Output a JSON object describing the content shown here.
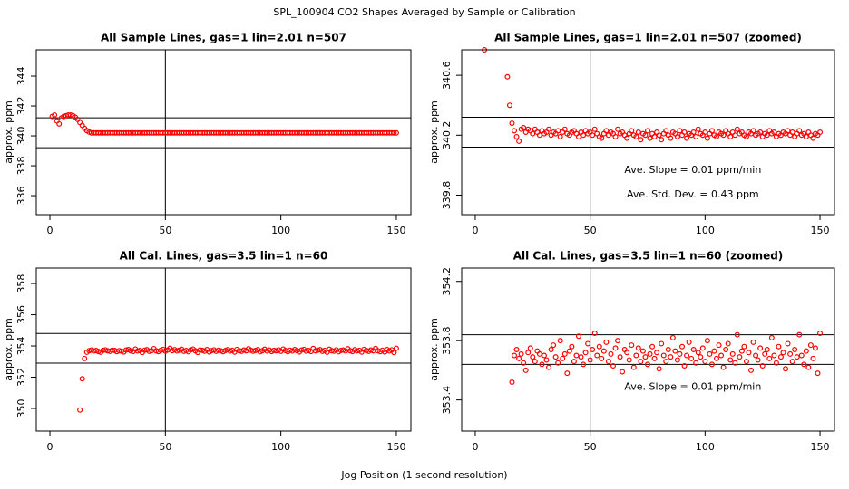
{
  "title": "SPL_100904  CO2 Shapes Averaged by Sample or Calibration",
  "xlabel": "Jog Position (1 second resolution)",
  "chart_data": [
    {
      "type": "scatter",
      "title": "All Sample Lines, gas=1 lin=2.01 n=507",
      "ylabel": "approx. ppm",
      "color": "#ff0000",
      "x": [
        1,
        2,
        3,
        4,
        5,
        6,
        7,
        8,
        9,
        10,
        11,
        12,
        13,
        14,
        15,
        16,
        17,
        18,
        19,
        20,
        21,
        22,
        23,
        24,
        25,
        26,
        27,
        28,
        29,
        30,
        31,
        32,
        33,
        34,
        35,
        36,
        37,
        38,
        39,
        40,
        41,
        42,
        43,
        44,
        45,
        46,
        47,
        48,
        49,
        50,
        51,
        52,
        53,
        54,
        55,
        56,
        57,
        58,
        59,
        60,
        61,
        62,
        63,
        64,
        65,
        66,
        67,
        68,
        69,
        70,
        71,
        72,
        73,
        74,
        75,
        76,
        77,
        78,
        79,
        80,
        81,
        82,
        83,
        84,
        85,
        86,
        87,
        88,
        89,
        90,
        91,
        92,
        93,
        94,
        95,
        96,
        97,
        98,
        99,
        100,
        101,
        102,
        103,
        104,
        105,
        106,
        107,
        108,
        109,
        110,
        111,
        112,
        113,
        114,
        115,
        116,
        117,
        118,
        119,
        120,
        121,
        122,
        123,
        124,
        125,
        126,
        127,
        128,
        129,
        130,
        131,
        132,
        133,
        134,
        135,
        136,
        137,
        138,
        139,
        140,
        141,
        142,
        143,
        144,
        145,
        146,
        147,
        148,
        149,
        150
      ],
      "values": [
        341.3,
        341.4,
        341.0,
        340.8,
        341.2,
        341.3,
        341.35,
        341.4,
        341.4,
        341.35,
        341.25,
        341.1,
        340.9,
        340.7,
        340.5,
        340.35,
        340.25,
        340.2,
        340.2,
        340.2,
        340.2,
        340.2,
        340.2,
        340.2,
        340.2,
        340.2,
        340.2,
        340.2,
        340.2,
        340.2,
        340.2,
        340.2,
        340.2,
        340.2,
        340.2,
        340.2,
        340.2,
        340.2,
        340.2,
        340.2,
        340.2,
        340.2,
        340.2,
        340.2,
        340.2,
        340.2,
        340.2,
        340.2,
        340.2,
        340.2,
        340.2,
        340.2,
        340.2,
        340.2,
        340.2,
        340.2,
        340.2,
        340.2,
        340.2,
        340.2,
        340.2,
        340.2,
        340.2,
        340.2,
        340.2,
        340.2,
        340.2,
        340.2,
        340.2,
        340.2,
        340.2,
        340.2,
        340.2,
        340.2,
        340.2,
        340.2,
        340.2,
        340.2,
        340.2,
        340.2,
        340.2,
        340.2,
        340.2,
        340.2,
        340.2,
        340.2,
        340.2,
        340.2,
        340.2,
        340.2,
        340.2,
        340.2,
        340.2,
        340.2,
        340.2,
        340.2,
        340.2,
        340.2,
        340.2,
        340.2,
        340.2,
        340.2,
        340.2,
        340.2,
        340.2,
        340.2,
        340.2,
        340.2,
        340.2,
        340.2,
        340.2,
        340.2,
        340.2,
        340.2,
        340.2,
        340.2,
        340.2,
        340.2,
        340.2,
        340.2,
        340.2,
        340.2,
        340.2,
        340.2,
        340.2,
        340.2,
        340.2,
        340.2,
        340.2,
        340.2,
        340.2,
        340.2,
        340.2,
        340.2,
        340.2,
        340.2,
        340.2,
        340.2,
        340.2,
        340.2,
        340.2,
        340.2,
        340.2,
        340.2,
        340.2,
        340.2,
        340.2,
        340.2,
        340.2,
        340.2
      ],
      "xlim": [
        -5.9,
        156.3
      ],
      "ylim": [
        334.73,
        345.76
      ],
      "xticks": [
        0,
        50,
        100,
        150
      ],
      "yticks": [
        336,
        338,
        340,
        342,
        344
      ],
      "hlines": [
        341.21,
        339.21
      ],
      "vlines": [
        50
      ],
      "annotations": []
    },
    {
      "type": "scatter",
      "title": "All Sample Lines, gas=1 lin=2.01 n=507 (zoomed)",
      "ylabel": "approx. ppm",
      "color": "#ff0000",
      "x": [
        4,
        14,
        15,
        16,
        17,
        18,
        19,
        20,
        21,
        22,
        23,
        24,
        25,
        26,
        27,
        28,
        29,
        30,
        31,
        32,
        33,
        34,
        35,
        36,
        37,
        38,
        39,
        40,
        41,
        42,
        43,
        44,
        45,
        46,
        47,
        48,
        49,
        50,
        51,
        52,
        53,
        54,
        55,
        56,
        57,
        58,
        59,
        60,
        61,
        62,
        63,
        64,
        65,
        66,
        67,
        68,
        69,
        70,
        71,
        72,
        73,
        74,
        75,
        76,
        77,
        78,
        79,
        80,
        81,
        82,
        83,
        84,
        85,
        86,
        87,
        88,
        89,
        90,
        91,
        92,
        93,
        94,
        95,
        96,
        97,
        98,
        99,
        100,
        101,
        102,
        103,
        104,
        105,
        106,
        107,
        108,
        109,
        110,
        111,
        112,
        113,
        114,
        115,
        116,
        117,
        118,
        119,
        120,
        121,
        122,
        123,
        124,
        125,
        126,
        127,
        128,
        129,
        130,
        131,
        132,
        133,
        134,
        135,
        136,
        137,
        138,
        139,
        140,
        141,
        142,
        143,
        144,
        145,
        146,
        147,
        148,
        149,
        150
      ],
      "values": [
        340.77,
        340.59,
        340.4,
        340.28,
        340.23,
        340.19,
        340.16,
        340.24,
        340.25,
        340.22,
        340.24,
        340.23,
        340.21,
        340.24,
        340.22,
        340.2,
        340.23,
        340.21,
        340.22,
        340.24,
        340.2,
        340.22,
        340.21,
        340.23,
        340.19,
        340.22,
        340.24,
        340.21,
        340.2,
        340.22,
        340.23,
        340.21,
        340.19,
        340.22,
        340.2,
        340.23,
        340.21,
        340.22,
        340.2,
        340.24,
        340.21,
        340.19,
        340.18,
        340.21,
        340.23,
        340.2,
        340.22,
        340.21,
        340.19,
        340.24,
        340.21,
        340.22,
        340.2,
        340.18,
        340.21,
        340.23,
        340.2,
        340.19,
        340.22,
        340.17,
        340.21,
        340.2,
        340.23,
        340.18,
        340.21,
        340.19,
        340.22,
        340.2,
        340.17,
        340.21,
        340.23,
        340.2,
        340.18,
        340.22,
        340.21,
        340.19,
        340.23,
        340.2,
        340.22,
        340.18,
        340.21,
        340.2,
        340.22,
        340.19,
        340.24,
        340.21,
        340.2,
        340.22,
        340.18,
        340.21,
        340.23,
        340.2,
        340.19,
        340.22,
        340.21,
        340.2,
        340.23,
        340.21,
        340.19,
        340.22,
        340.2,
        340.24,
        340.21,
        340.22,
        340.2,
        340.19,
        340.22,
        340.21,
        340.23,
        340.2,
        340.21,
        340.22,
        340.19,
        340.21,
        340.2,
        340.23,
        340.21,
        340.22,
        340.19,
        340.21,
        340.2,
        340.22,
        340.21,
        340.23,
        340.2,
        340.22,
        340.19,
        340.21,
        340.23,
        340.2,
        340.21,
        340.19,
        340.22,
        340.2,
        340.18,
        340.21,
        340.2,
        340.22
      ],
      "xlim": [
        -5.9,
        156.3
      ],
      "ylim": [
        339.67,
        340.77
      ],
      "xticks": [
        0,
        50,
        100,
        150
      ],
      "yticks": [
        339.8,
        340.2,
        340.6
      ],
      "hlines": [
        340.32,
        340.12
      ],
      "vlines": [
        50
      ],
      "annotations": [
        "Ave. Slope =  0.01  ppm/min",
        "Ave. Std. Dev. =  0.43  ppm"
      ]
    },
    {
      "type": "scatter",
      "title": "All Cal. Lines, gas=3.5 lin=1 n=60",
      "ylabel": "approx. ppm",
      "color": "#ff0000",
      "x": [
        13,
        14,
        15,
        16,
        17,
        18,
        19,
        20,
        21,
        22,
        23,
        24,
        25,
        26,
        27,
        28,
        29,
        30,
        31,
        32,
        33,
        34,
        35,
        36,
        37,
        38,
        39,
        40,
        41,
        42,
        43,
        44,
        45,
        46,
        47,
        48,
        49,
        50,
        51,
        52,
        53,
        54,
        55,
        56,
        57,
        58,
        59,
        60,
        61,
        62,
        63,
        64,
        65,
        66,
        67,
        68,
        69,
        70,
        71,
        72,
        73,
        74,
        75,
        76,
        77,
        78,
        79,
        80,
        81,
        82,
        83,
        84,
        85,
        86,
        87,
        88,
        89,
        90,
        91,
        92,
        93,
        94,
        95,
        96,
        97,
        98,
        99,
        100,
        101,
        102,
        103,
        104,
        105,
        106,
        107,
        108,
        109,
        110,
        111,
        112,
        113,
        114,
        115,
        116,
        117,
        118,
        119,
        120,
        121,
        122,
        123,
        124,
        125,
        126,
        127,
        128,
        129,
        130,
        131,
        132,
        133,
        134,
        135,
        136,
        137,
        138,
        139,
        140,
        141,
        142,
        143,
        144,
        145,
        146,
        147,
        148,
        149,
        150
      ],
      "values": [
        349.9,
        351.9,
        353.2,
        353.6,
        353.7,
        353.74,
        353.68,
        353.71,
        353.65,
        353.6,
        353.72,
        353.75,
        353.69,
        353.66,
        353.73,
        353.71,
        353.64,
        353.7,
        353.67,
        353.62,
        353.74,
        353.77,
        353.69,
        353.65,
        353.8,
        353.68,
        353.71,
        353.58,
        353.73,
        353.76,
        353.66,
        353.7,
        353.83,
        353.69,
        353.64,
        353.72,
        353.78,
        353.67,
        353.74,
        353.85,
        353.7,
        353.76,
        353.68,
        353.73,
        353.79,
        353.66,
        353.71,
        353.63,
        353.75,
        353.8,
        353.69,
        353.59,
        353.74,
        353.72,
        353.67,
        353.77,
        353.62,
        353.7,
        353.75,
        353.66,
        353.73,
        353.69,
        353.64,
        353.71,
        353.76,
        353.68,
        353.72,
        353.61,
        353.78,
        353.7,
        353.66,
        353.74,
        353.69,
        353.82,
        353.73,
        353.67,
        353.71,
        353.76,
        353.63,
        353.7,
        353.79,
        353.68,
        353.74,
        353.65,
        353.72,
        353.69,
        353.75,
        353.66,
        353.8,
        353.71,
        353.64,
        353.73,
        353.68,
        353.77,
        353.7,
        353.62,
        353.74,
        353.78,
        353.67,
        353.71,
        353.65,
        353.84,
        353.69,
        353.73,
        353.76,
        353.66,
        353.72,
        353.6,
        353.79,
        353.7,
        353.67,
        353.75,
        353.63,
        353.71,
        353.74,
        353.68,
        353.82,
        353.7,
        353.65,
        353.76,
        353.69,
        353.72,
        353.61,
        353.78,
        353.71,
        353.66,
        353.74,
        353.69,
        353.84,
        353.7,
        353.64,
        353.73,
        353.62,
        353.77,
        353.68,
        353.75,
        353.58,
        353.85
      ],
      "xlim": [
        -5.9,
        156.3
      ],
      "ylim": [
        348.55,
        358.99
      ],
      "xticks": [
        0,
        50,
        100,
        150
      ],
      "yticks": [
        350,
        352,
        354,
        356,
        358
      ],
      "hlines": [
        354.8,
        352.9
      ],
      "vlines": [
        50
      ],
      "annotations": []
    },
    {
      "type": "scatter",
      "title": "All Cal. Lines, gas=3.5 lin=1 n=60 (zoomed)",
      "ylabel": "approx. ppm",
      "color": "#ff0000",
      "x": [
        16,
        17,
        18,
        19,
        20,
        21,
        22,
        23,
        24,
        25,
        26,
        27,
        28,
        29,
        30,
        31,
        32,
        33,
        34,
        35,
        36,
        37,
        38,
        39,
        40,
        41,
        42,
        43,
        44,
        45,
        46,
        47,
        48,
        49,
        50,
        51,
        52,
        53,
        54,
        55,
        56,
        57,
        58,
        59,
        60,
        61,
        62,
        63,
        64,
        65,
        66,
        67,
        68,
        69,
        70,
        71,
        72,
        73,
        74,
        75,
        76,
        77,
        78,
        79,
        80,
        81,
        82,
        83,
        84,
        85,
        86,
        87,
        88,
        89,
        90,
        91,
        92,
        93,
        94,
        95,
        96,
        97,
        98,
        99,
        100,
        101,
        102,
        103,
        104,
        105,
        106,
        107,
        108,
        109,
        110,
        111,
        112,
        113,
        114,
        115,
        116,
        117,
        118,
        119,
        120,
        121,
        122,
        123,
        124,
        125,
        126,
        127,
        128,
        129,
        130,
        131,
        132,
        133,
        134,
        135,
        136,
        137,
        138,
        139,
        140,
        141,
        142,
        143,
        144,
        145,
        146,
        147,
        148,
        149,
        150
      ],
      "values": [
        353.52,
        353.7,
        353.74,
        353.68,
        353.71,
        353.65,
        353.6,
        353.72,
        353.75,
        353.69,
        353.66,
        353.73,
        353.71,
        353.64,
        353.7,
        353.67,
        353.62,
        353.74,
        353.77,
        353.69,
        353.65,
        353.8,
        353.68,
        353.71,
        353.58,
        353.73,
        353.76,
        353.66,
        353.7,
        353.83,
        353.69,
        353.64,
        353.72,
        353.78,
        353.67,
        353.74,
        353.85,
        353.7,
        353.76,
        353.68,
        353.73,
        353.79,
        353.66,
        353.71,
        353.63,
        353.75,
        353.8,
        353.69,
        353.59,
        353.74,
        353.72,
        353.67,
        353.77,
        353.62,
        353.7,
        353.75,
        353.66,
        353.73,
        353.69,
        353.64,
        353.71,
        353.76,
        353.68,
        353.72,
        353.61,
        353.78,
        353.7,
        353.66,
        353.74,
        353.69,
        353.82,
        353.73,
        353.67,
        353.71,
        353.76,
        353.63,
        353.7,
        353.79,
        353.68,
        353.74,
        353.65,
        353.72,
        353.69,
        353.75,
        353.66,
        353.8,
        353.71,
        353.64,
        353.73,
        353.68,
        353.77,
        353.7,
        353.62,
        353.74,
        353.78,
        353.67,
        353.71,
        353.65,
        353.84,
        353.69,
        353.73,
        353.76,
        353.66,
        353.72,
        353.6,
        353.79,
        353.7,
        353.67,
        353.75,
        353.63,
        353.71,
        353.74,
        353.68,
        353.82,
        353.7,
        353.65,
        353.76,
        353.69,
        353.72,
        353.61,
        353.78,
        353.71,
        353.66,
        353.74,
        353.69,
        353.84,
        353.7,
        353.64,
        353.73,
        353.62,
        353.77,
        353.68,
        353.75,
        353.58,
        353.85
      ],
      "xlim": [
        -5.9,
        156.3
      ],
      "ylim": [
        353.19,
        354.29
      ],
      "xticks": [
        0,
        50,
        100,
        150
      ],
      "yticks": [
        353.4,
        353.8,
        354.2
      ],
      "hlines": [
        353.84,
        353.64
      ],
      "vlines": [
        50
      ],
      "annotations": [
        "Ave. Slope =  0.01  ppm/min"
      ]
    }
  ]
}
